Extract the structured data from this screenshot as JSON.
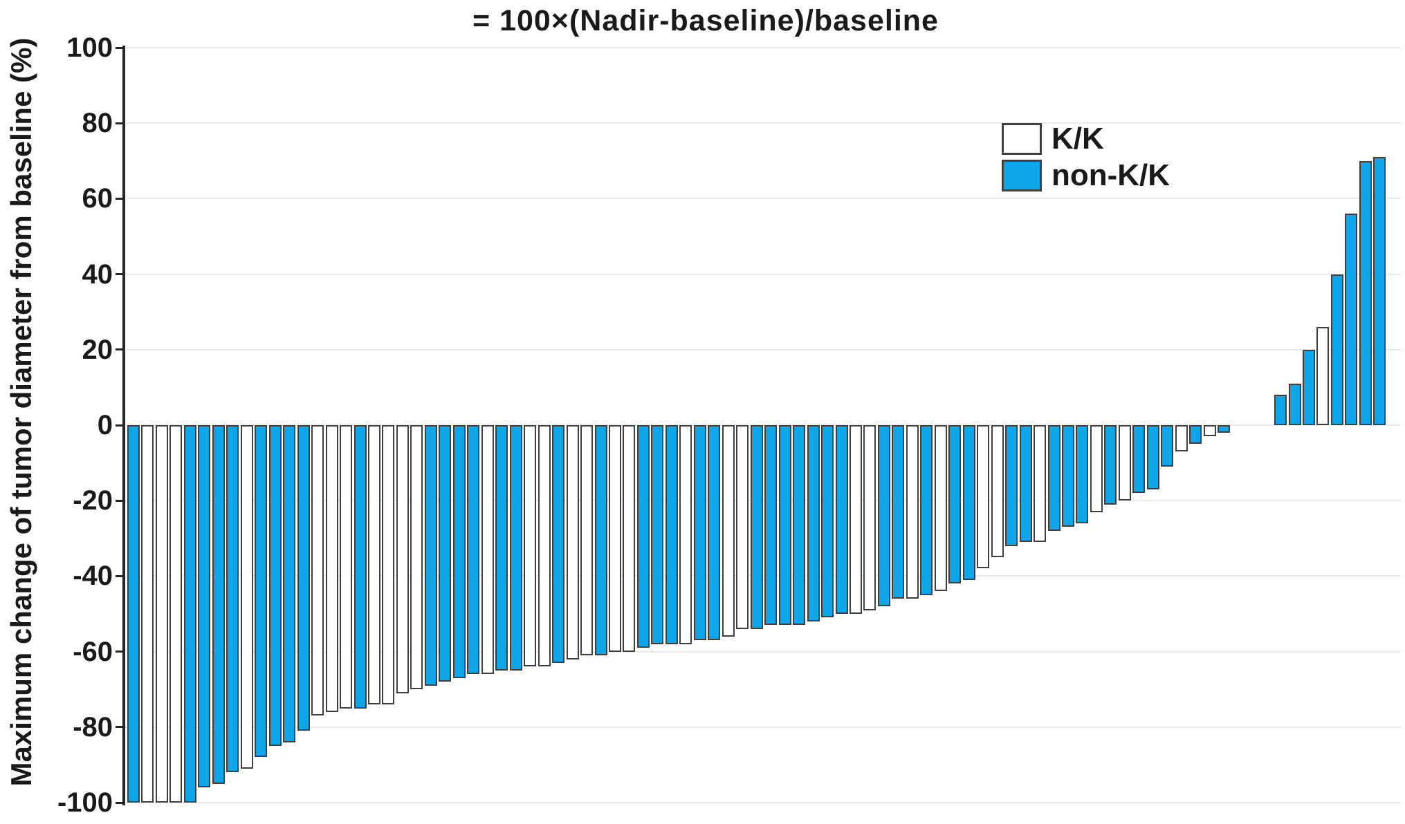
{
  "title": "= 100×(Nadir-baseline)/baseline",
  "y_axis": {
    "label": "Maximum change of tumor diameter from baseline (%)",
    "ticks": [
      100,
      80,
      60,
      40,
      20,
      0,
      -20,
      -40,
      -60,
      -80,
      -100
    ],
    "range": [
      -100,
      100
    ]
  },
  "legend": {
    "items": [
      {
        "label": "K/K",
        "color": "#ffffff"
      },
      {
        "label": "non-K/K",
        "color": "#0ea6e9"
      }
    ]
  },
  "colors": {
    "bar_blue": "#0ea6e9",
    "bar_white": "#ffffff",
    "bar_border": "#3f3f3f",
    "gridline": "#ebebeb",
    "axis": "#262626",
    "text": "#1a1a1a"
  },
  "chart_data": {
    "type": "bar",
    "subtype": "waterfall",
    "title": "= 100×(Nadir-baseline)/baseline",
    "ylabel": "Maximum change of tumor diameter from baseline (%)",
    "ylim": [
      -100,
      100
    ],
    "grid": true,
    "legend_position": "upper right",
    "gap_after_index": 78,
    "gap_slots": 3,
    "groups": {
      "K/K": "white",
      "non-K/K": "blue"
    },
    "bars": [
      {
        "value": -100,
        "group": "non-K/K"
      },
      {
        "value": -100,
        "group": "K/K"
      },
      {
        "value": -100,
        "group": "K/K"
      },
      {
        "value": -100,
        "group": "K/K"
      },
      {
        "value": -100,
        "group": "non-K/K"
      },
      {
        "value": -96,
        "group": "non-K/K"
      },
      {
        "value": -95,
        "group": "non-K/K"
      },
      {
        "value": -92,
        "group": "non-K/K"
      },
      {
        "value": -91,
        "group": "K/K"
      },
      {
        "value": -88,
        "group": "non-K/K"
      },
      {
        "value": -85,
        "group": "non-K/K"
      },
      {
        "value": -84,
        "group": "non-K/K"
      },
      {
        "value": -81,
        "group": "non-K/K"
      },
      {
        "value": -77,
        "group": "K/K"
      },
      {
        "value": -76,
        "group": "K/K"
      },
      {
        "value": -75,
        "group": "K/K"
      },
      {
        "value": -75,
        "group": "non-K/K"
      },
      {
        "value": -74,
        "group": "K/K"
      },
      {
        "value": -74,
        "group": "K/K"
      },
      {
        "value": -71,
        "group": "K/K"
      },
      {
        "value": -70,
        "group": "K/K"
      },
      {
        "value": -69,
        "group": "non-K/K"
      },
      {
        "value": -68,
        "group": "non-K/K"
      },
      {
        "value": -67,
        "group": "non-K/K"
      },
      {
        "value": -66,
        "group": "non-K/K"
      },
      {
        "value": -66,
        "group": "K/K"
      },
      {
        "value": -65,
        "group": "non-K/K"
      },
      {
        "value": -65,
        "group": "non-K/K"
      },
      {
        "value": -64,
        "group": "K/K"
      },
      {
        "value": -64,
        "group": "K/K"
      },
      {
        "value": -63,
        "group": "non-K/K"
      },
      {
        "value": -62,
        "group": "K/K"
      },
      {
        "value": -61,
        "group": "K/K"
      },
      {
        "value": -61,
        "group": "non-K/K"
      },
      {
        "value": -60,
        "group": "K/K"
      },
      {
        "value": -60,
        "group": "K/K"
      },
      {
        "value": -59,
        "group": "non-K/K"
      },
      {
        "value": -58,
        "group": "non-K/K"
      },
      {
        "value": -58,
        "group": "non-K/K"
      },
      {
        "value": -58,
        "group": "K/K"
      },
      {
        "value": -57,
        "group": "non-K/K"
      },
      {
        "value": -57,
        "group": "non-K/K"
      },
      {
        "value": -56,
        "group": "K/K"
      },
      {
        "value": -54,
        "group": "K/K"
      },
      {
        "value": -54,
        "group": "non-K/K"
      },
      {
        "value": -53,
        "group": "non-K/K"
      },
      {
        "value": -53,
        "group": "non-K/K"
      },
      {
        "value": -53,
        "group": "non-K/K"
      },
      {
        "value": -52,
        "group": "non-K/K"
      },
      {
        "value": -51,
        "group": "non-K/K"
      },
      {
        "value": -50,
        "group": "non-K/K"
      },
      {
        "value": -50,
        "group": "K/K"
      },
      {
        "value": -49,
        "group": "K/K"
      },
      {
        "value": -48,
        "group": "non-K/K"
      },
      {
        "value": -46,
        "group": "non-K/K"
      },
      {
        "value": -46,
        "group": "K/K"
      },
      {
        "value": -45,
        "group": "non-K/K"
      },
      {
        "value": -44,
        "group": "K/K"
      },
      {
        "value": -42,
        "group": "non-K/K"
      },
      {
        "value": -41,
        "group": "non-K/K"
      },
      {
        "value": -38,
        "group": "K/K"
      },
      {
        "value": -35,
        "group": "K/K"
      },
      {
        "value": -32,
        "group": "non-K/K"
      },
      {
        "value": -31,
        "group": "non-K/K"
      },
      {
        "value": -31,
        "group": "K/K"
      },
      {
        "value": -28,
        "group": "non-K/K"
      },
      {
        "value": -27,
        "group": "non-K/K"
      },
      {
        "value": -26,
        "group": "non-K/K"
      },
      {
        "value": -23,
        "group": "K/K"
      },
      {
        "value": -21,
        "group": "non-K/K"
      },
      {
        "value": -20,
        "group": "K/K"
      },
      {
        "value": -18,
        "group": "non-K/K"
      },
      {
        "value": -17,
        "group": "non-K/K"
      },
      {
        "value": -11,
        "group": "non-K/K"
      },
      {
        "value": -7,
        "group": "K/K"
      },
      {
        "value": -5,
        "group": "non-K/K"
      },
      {
        "value": -3,
        "group": "K/K"
      },
      {
        "value": -2,
        "group": "non-K/K"
      },
      {
        "value": 8,
        "group": "non-K/K"
      },
      {
        "value": 11,
        "group": "non-K/K"
      },
      {
        "value": 20,
        "group": "non-K/K"
      },
      {
        "value": 26,
        "group": "K/K"
      },
      {
        "value": 40,
        "group": "non-K/K"
      },
      {
        "value": 56,
        "group": "non-K/K"
      },
      {
        "value": 70,
        "group": "non-K/K"
      },
      {
        "value": 71,
        "group": "non-K/K"
      }
    ]
  }
}
